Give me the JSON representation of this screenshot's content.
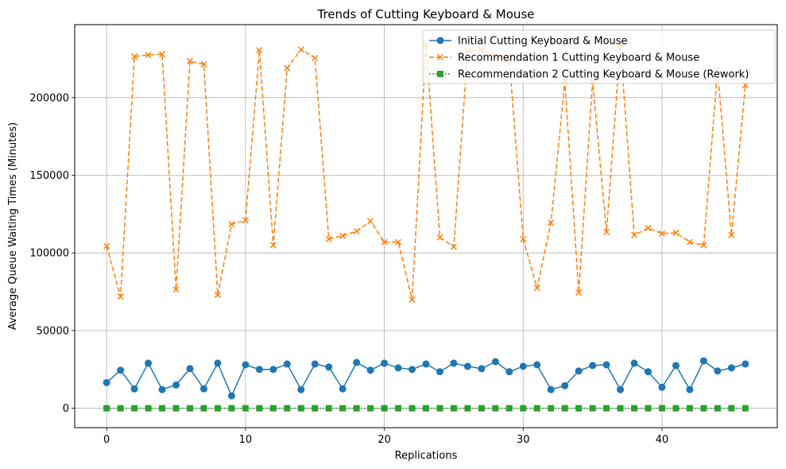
{
  "chart_data": {
    "type": "line",
    "title": "Trends of Cutting Keyboard & Mouse",
    "xlabel": "Replications",
    "ylabel": "Average Queue Waiting Times (Minutes)",
    "xlim": [
      -2.3,
      48.3
    ],
    "ylim": [
      -12500,
      247000
    ],
    "xticks": [
      0,
      10,
      20,
      30,
      40
    ],
    "yticks": [
      0,
      50000,
      100000,
      150000,
      200000
    ],
    "grid": true,
    "legend_position": "top-right",
    "x": [
      0,
      1,
      2,
      3,
      4,
      5,
      6,
      7,
      8,
      9,
      10,
      11,
      12,
      13,
      14,
      15,
      16,
      17,
      18,
      19,
      20,
      21,
      22,
      23,
      24,
      25,
      26,
      27,
      28,
      29,
      30,
      31,
      32,
      33,
      34,
      35,
      36,
      37,
      38,
      39,
      40,
      41,
      42,
      43,
      44,
      45,
      46
    ],
    "series": [
      {
        "name": "Initial Cutting Keyboard & Mouse",
        "color": "#1f77b4",
        "line_style": "solid",
        "marker": "circle",
        "values": [
          16500,
          24500,
          12500,
          29000,
          12000,
          15000,
          25500,
          12500,
          29000,
          8000,
          28000,
          25000,
          25000,
          28500,
          12000,
          28500,
          26500,
          12500,
          29500,
          24500,
          29000,
          26000,
          25000,
          28500,
          23500,
          29000,
          27000,
          25500,
          30000,
          23500,
          27000,
          28000,
          12000,
          14500,
          24000,
          27500,
          28000,
          12000,
          29000,
          23500,
          13500,
          27500,
          12000,
          30500,
          24000,
          26000,
          28500
        ]
      },
      {
        "name": "Recommendation 1 Cutting Keyboard & Mouse",
        "color": "#ff7f0e",
        "line_style": "dashed",
        "marker": "x",
        "values": [
          104500,
          72000,
          226500,
          227500,
          228000,
          76500,
          223500,
          221500,
          73000,
          118500,
          121000,
          230500,
          105000,
          219000,
          231000,
          225500,
          109000,
          111000,
          114000,
          120500,
          107000,
          107000,
          70000,
          234500,
          110000,
          104000,
          230000,
          230500,
          227000,
          225000,
          109000,
          77500,
          119500,
          210500,
          74500,
          210500,
          113500,
          234000,
          111500,
          116000,
          112500,
          113000,
          107000,
          105000,
          218000,
          111500,
          208000
        ]
      },
      {
        "name": "Recommendation 2 Cutting Keyboard & Mouse (Rework)",
        "color": "#2ca02c",
        "line_style": "dotted",
        "marker": "square",
        "values": [
          0,
          0,
          0,
          0,
          0,
          0,
          0,
          0,
          0,
          0,
          0,
          0,
          0,
          0,
          0,
          0,
          0,
          0,
          0,
          0,
          0,
          0,
          0,
          0,
          0,
          0,
          0,
          0,
          0,
          0,
          0,
          0,
          0,
          0,
          0,
          0,
          0,
          0,
          0,
          0,
          0,
          0,
          0,
          0,
          0,
          0,
          0
        ]
      }
    ]
  }
}
